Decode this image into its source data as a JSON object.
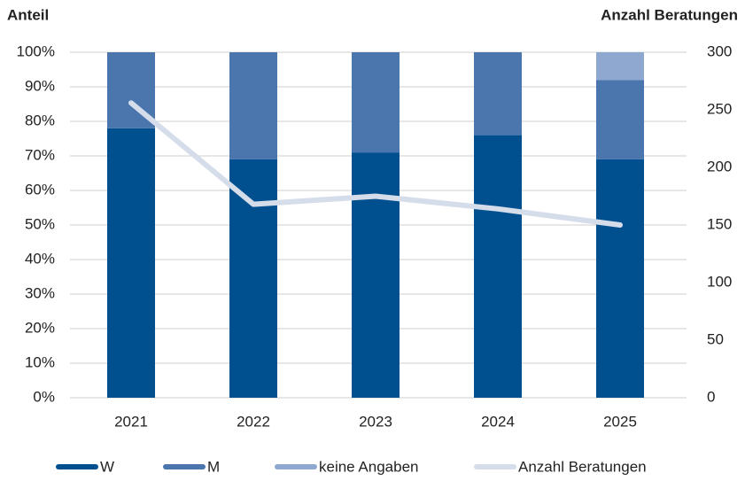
{
  "chart_data": {
    "type": "bar",
    "y_label": "Anteil",
    "y2_label": "Anzahl Beratungen",
    "categories": [
      "2021",
      "2022",
      "2023",
      "2024",
      "2025"
    ],
    "stacked": true,
    "series": [
      {
        "name": "W",
        "color": "#00508f",
        "values": [
          78,
          69,
          71,
          76,
          69
        ]
      },
      {
        "name": "M",
        "color": "#4a76ad",
        "values": [
          22,
          31,
          29,
          24,
          23
        ]
      },
      {
        "name": "keine Angaben",
        "color": "#8fa8cf",
        "values": [
          0,
          0,
          0,
          0,
          8
        ]
      },
      {
        "name": "Anzahl Beratungen",
        "color": "#d5dcea",
        "type": "line",
        "axis": "y2",
        "values": [
          256,
          168,
          175,
          164,
          150
        ]
      }
    ],
    "ylim": [
      0,
      100
    ],
    "yticks": [
      {
        "value": 0,
        "label": "0%"
      },
      {
        "value": 10,
        "label": "10%"
      },
      {
        "value": 20,
        "label": "20%"
      },
      {
        "value": 30,
        "label": "30%"
      },
      {
        "value": 40,
        "label": "40%"
      },
      {
        "value": 50,
        "label": "50%"
      },
      {
        "value": 60,
        "label": "60%"
      },
      {
        "value": 70,
        "label": "70%"
      },
      {
        "value": 80,
        "label": "80%"
      },
      {
        "value": 90,
        "label": "90%"
      },
      {
        "value": 100,
        "label": "100%"
      }
    ],
    "y2lim": [
      0,
      300
    ],
    "y2ticks": [
      0,
      50,
      100,
      150,
      200,
      250,
      300
    ],
    "grid": true,
    "legend": "bottom"
  }
}
